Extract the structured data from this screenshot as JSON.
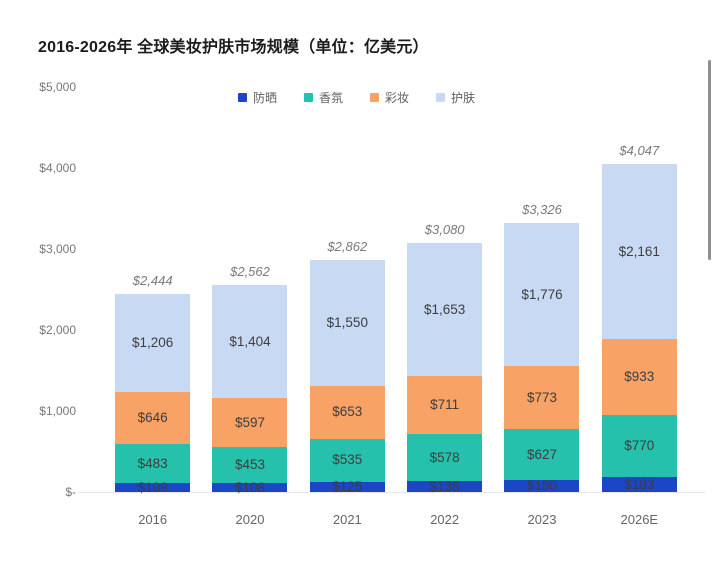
{
  "title": "2016-2026年 全球美妆护肤市场规模（单位：亿美元）",
  "legend": [
    {
      "id": "sunscreen",
      "label": "防晒",
      "color": "#1b46c6"
    },
    {
      "id": "fragrance",
      "label": "香氛",
      "color": "#25c1ac"
    },
    {
      "id": "makeup",
      "label": "彩妆",
      "color": "#f9a266"
    },
    {
      "id": "skincare",
      "label": "护肤",
      "color": "#c8d9f4"
    }
  ],
  "y_axis": {
    "tick_labels": [
      "$5,000",
      "$4,000",
      "$3,000",
      "$2,000",
      "$1,000",
      "$-"
    ],
    "max": 5000,
    "min": 0
  },
  "chart_data": {
    "type": "bar",
    "stacked": true,
    "title": "2016-2026年 全球美妆护肤市场规模（单位：亿美元）",
    "categories": [
      "2016",
      "2020",
      "2021",
      "2022",
      "2023",
      "2026E"
    ],
    "series": [
      {
        "id": "sunscreen",
        "name": "防晒",
        "color": "#1b46c6",
        "values": [
          109,
          108,
          125,
          138,
          150,
          183
        ]
      },
      {
        "id": "fragrance",
        "name": "香氛",
        "color": "#25c1ac",
        "values": [
          483,
          453,
          535,
          578,
          627,
          770
        ]
      },
      {
        "id": "makeup",
        "name": "彩妆",
        "color": "#f9a266",
        "values": [
          646,
          597,
          653,
          711,
          773,
          933
        ]
      },
      {
        "id": "skincare",
        "name": "护肤",
        "color": "#c8d9f4",
        "values": [
          1206,
          1404,
          1550,
          1653,
          1776,
          2161
        ]
      }
    ],
    "totals": [
      2444,
      2562,
      2862,
      3080,
      3326,
      4047
    ],
    "total_labels": [
      "$2,444",
      "$2,562",
      "$2,862",
      "$3,080",
      "$3,326",
      "$4,047"
    ],
    "segment_label_format": "$#,###",
    "ylim": [
      0,
      5000
    ],
    "grid": false,
    "legend_position": "top"
  }
}
